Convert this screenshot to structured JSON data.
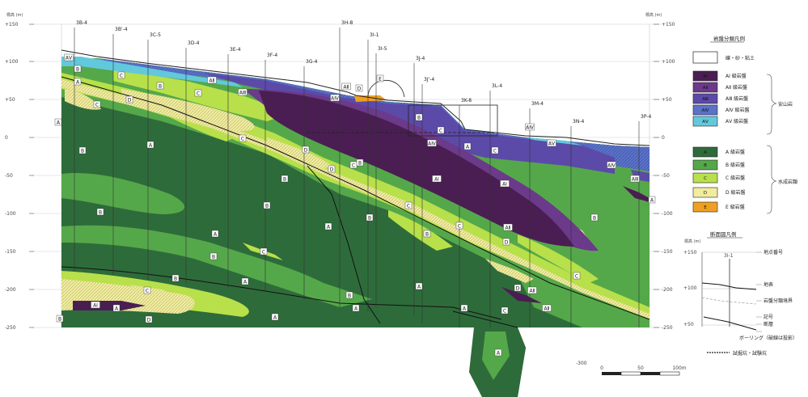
{
  "title_box": {},
  "axes": {
    "left_unit": "標高 (m)",
    "right_unit": "標高 (m)",
    "left_ticks": [
      "+150",
      "+100",
      "+50",
      "0",
      "-50",
      "-100",
      "-150",
      "-200",
      "-250"
    ],
    "right_ticks": [
      "+150",
      "+100",
      "+50",
      "0",
      "-50",
      "-100",
      "-150",
      "-200",
      "-250"
    ]
  },
  "boreholes": [
    "3B-4",
    "3B'-4",
    "3C-5",
    "3D-4",
    "3E-4",
    "3F-4",
    "3G-4",
    "3H-8",
    "3I-1",
    "3J-4",
    "3I-5",
    "3J'-4",
    "3K-8",
    "3L-4",
    "3M-4",
    "3N-4",
    "3P-4"
  ],
  "zones": [
    {
      "label": "A"
    },
    {
      "label": "B"
    },
    {
      "label": "C"
    },
    {
      "label": "D"
    },
    {
      "label": "E"
    },
    {
      "label": "AⅠ"
    },
    {
      "label": "AⅡ"
    },
    {
      "label": "AⅢ"
    },
    {
      "label": "AⅣ"
    },
    {
      "label": "AⅤ"
    }
  ],
  "legend": {
    "title": "岩盤分類凡例",
    "soil_label": "礫・砂・粘土",
    "volcanic_items": [
      {
        "code": "AⅠ",
        "text": "AⅠ 級岩盤",
        "color": "#4a1e52"
      },
      {
        "code": "AⅡ",
        "text": "AⅡ 級岩盤",
        "color": "#6b3a8a"
      },
      {
        "code": "AⅢ",
        "text": "AⅢ 級岩盤",
        "color": "#5c4aa8"
      },
      {
        "code": "AⅣ",
        "text": "AⅣ 級岩盤",
        "color": "#5a72c8"
      },
      {
        "code": "AⅤ",
        "text": "AⅤ 級岩盤",
        "color": "#62c8dc"
      }
    ],
    "volcanic_group": "安山岩",
    "sed_items": [
      {
        "code": "A",
        "text": "A 級岩盤",
        "color": "#2e6b3a"
      },
      {
        "code": "B",
        "text": "B 級岩盤",
        "color": "#55a84a"
      },
      {
        "code": "C",
        "text": "C 級岩盤",
        "color": "#b8e04a"
      },
      {
        "code": "D",
        "text": "D 級岩盤",
        "color": "#f0eca0"
      },
      {
        "code": "E",
        "text": "E 級岩盤",
        "color": "#f0a020"
      }
    ],
    "sed_group": "水成岩類"
  },
  "inset": {
    "title": "断面図凡例",
    "unit": "標高 (m)",
    "ticks": [
      "+150",
      "+100",
      "+50"
    ],
    "hole_id": "3I-1",
    "notes": [
      "地点番号",
      "地表",
      "岩盤分類境界",
      "記号",
      "断層",
      "ボーリング（破線は投影）"
    ],
    "footer": "試掘坑・試験坑"
  },
  "scale": {
    "labels": [
      "0",
      "50",
      "100m"
    ]
  },
  "extra_tick": "-300"
}
